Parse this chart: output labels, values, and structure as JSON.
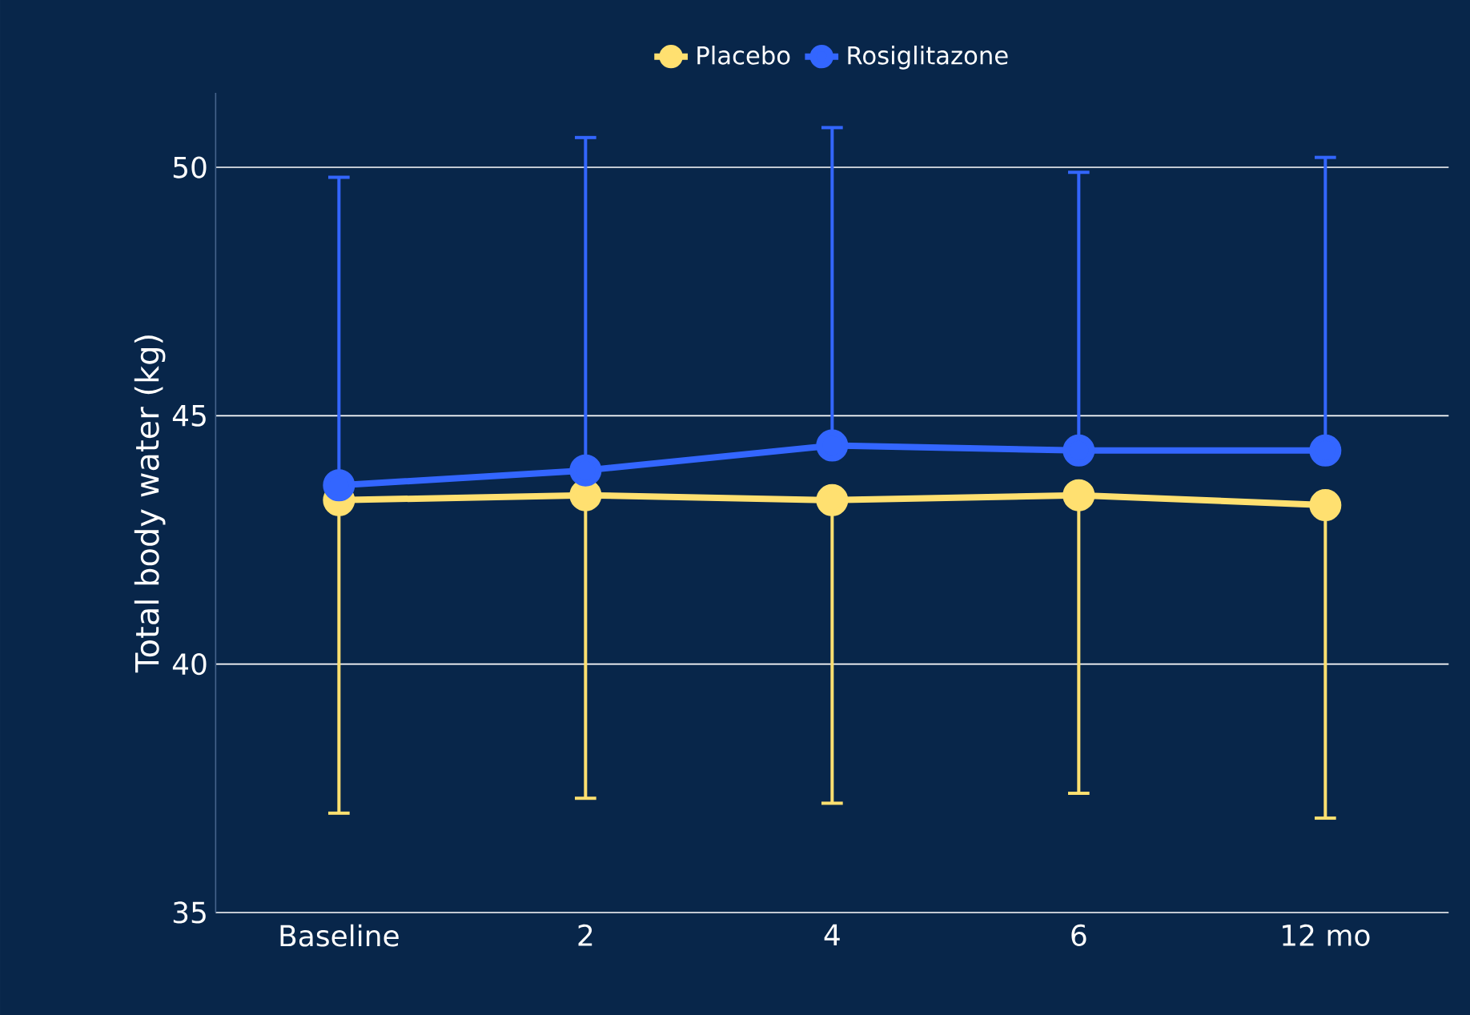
{
  "chart_data": {
    "type": "line",
    "ylabel": "Total body water (kg)",
    "categories": [
      "Baseline",
      "2",
      "4",
      "6",
      "12 mo"
    ],
    "series": [
      {
        "name": "Placebo",
        "color": "#ffe070",
        "values": [
          43.3,
          43.4,
          43.3,
          43.4,
          43.2
        ],
        "errors": [
          [
            37.0,
            43.3
          ],
          [
            37.3,
            43.4
          ],
          [
            37.2,
            43.3
          ],
          [
            37.4,
            43.4
          ],
          [
            36.9,
            43.2
          ]
        ]
      },
      {
        "name": "Rosiglitazone",
        "color": "#3366ff",
        "values": [
          43.6,
          43.9,
          44.4,
          44.3,
          44.3
        ],
        "errors": [
          [
            43.6,
            49.8
          ],
          [
            43.9,
            50.6
          ],
          [
            44.4,
            50.8
          ],
          [
            44.3,
            49.9
          ],
          [
            44.3,
            50.2
          ]
        ]
      }
    ],
    "ylim": [
      35,
      51.5
    ],
    "yticks": [
      35,
      40,
      45,
      50
    ],
    "grid": "y",
    "legend": "top",
    "marker": "circle",
    "line_style": "solid"
  }
}
